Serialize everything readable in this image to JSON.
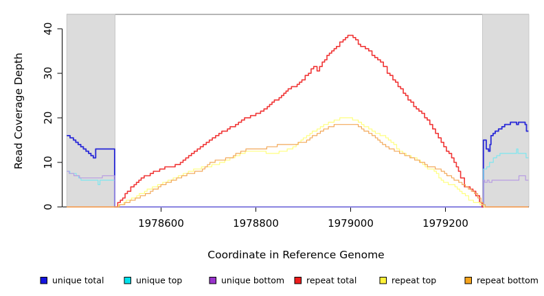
{
  "legend": {
    "items": [
      {
        "label": "unique total",
        "color": "#1414e0"
      },
      {
        "label": "unique top",
        "color": "#00e2ec"
      },
      {
        "label": "unique bottom",
        "color": "#9933cc"
      },
      {
        "label": "repeat total",
        "color": "#ee1c1c"
      },
      {
        "label": "repeat top",
        "color": "#fff23a"
      },
      {
        "label": "repeat bottom",
        "color": "#f7a41c"
      }
    ]
  },
  "chart_data": {
    "type": "line",
    "title": "",
    "xlabel": "Coordinate in Reference Genome",
    "ylabel": "Read Coverage Depth",
    "x_range": [
      1978392,
      1979376
    ],
    "y_range": [
      0,
      43.2
    ],
    "x_ticks": [
      {
        "value": 1978600,
        "label": "1978600"
      },
      {
        "value": 1978800,
        "label": "1978800"
      },
      {
        "value": 1979000,
        "label": "1979000"
      },
      {
        "value": 1979200,
        "label": "1979200"
      }
    ],
    "y_ticks": [
      {
        "value": 0,
        "label": "0"
      },
      {
        "value": 10,
        "label": "10"
      },
      {
        "value": 20,
        "label": "20"
      },
      {
        "value": 30,
        "label": "30"
      },
      {
        "value": 40,
        "label": "40"
      }
    ],
    "masked_regions": [
      [
        1978401,
        1978503
      ],
      [
        1979278,
        1979376
      ]
    ],
    "mask_fill": "#dcdcdc",
    "mask_edge": "#c2c2c2",
    "step": true,
    "legend_position": "bottom",
    "grid": false,
    "series": [
      {
        "name": "unique total",
        "color": "#2e2ed7",
        "width": 1.9,
        "points": [
          [
            1978401,
            16
          ],
          [
            1978415,
            15
          ],
          [
            1978425,
            14
          ],
          [
            1978436,
            13
          ],
          [
            1978447,
            12
          ],
          [
            1978457,
            11
          ],
          [
            1978462,
            13
          ],
          [
            1978501,
            13
          ],
          [
            1978502,
            0
          ],
          [
            1979279,
            0
          ],
          [
            1979280,
            15
          ],
          [
            1979286,
            13
          ],
          [
            1979291,
            12.5
          ],
          [
            1979294,
            14
          ],
          [
            1979296,
            16
          ],
          [
            1979305,
            17
          ],
          [
            1979319,
            18
          ],
          [
            1979343,
            19
          ],
          [
            1979350,
            18.5
          ],
          [
            1979354,
            19
          ],
          [
            1979368,
            18.5
          ],
          [
            1979371,
            17
          ],
          [
            1979375,
            17
          ]
        ]
      },
      {
        "name": "unique top",
        "color": "#7de6ef",
        "width": 1.2,
        "points": [
          [
            1978401,
            8
          ],
          [
            1978421,
            7
          ],
          [
            1978431,
            6
          ],
          [
            1978464,
            6
          ],
          [
            1978467,
            5
          ],
          [
            1978471,
            6
          ],
          [
            1978501,
            6
          ],
          [
            1978502,
            0
          ],
          [
            1979279,
            0
          ],
          [
            1979280,
            8.5
          ],
          [
            1979287,
            9
          ],
          [
            1979293,
            10
          ],
          [
            1979301,
            11
          ],
          [
            1979315,
            12
          ],
          [
            1979347,
            12
          ],
          [
            1979350,
            13
          ],
          [
            1979353,
            12
          ],
          [
            1979368,
            12
          ],
          [
            1979370,
            11
          ],
          [
            1979375,
            11
          ]
        ]
      },
      {
        "name": "unique bottom",
        "color": "#b79ce2",
        "width": 1.2,
        "points": [
          [
            1978401,
            8
          ],
          [
            1978416,
            7
          ],
          [
            1978428,
            6.5
          ],
          [
            1978474,
            6.5
          ],
          [
            1978476,
            7
          ],
          [
            1978501,
            7
          ],
          [
            1978502,
            0
          ],
          [
            1979279,
            0
          ],
          [
            1979280,
            6
          ],
          [
            1979283,
            5.5
          ],
          [
            1979288,
            6
          ],
          [
            1979292,
            5.5
          ],
          [
            1979298,
            6
          ],
          [
            1979353,
            6
          ],
          [
            1979355,
            7
          ],
          [
            1979367,
            7
          ],
          [
            1979369,
            6
          ],
          [
            1979375,
            6
          ]
        ]
      },
      {
        "name": "repeat total",
        "color": "#f03434",
        "width": 1.6,
        "points": [
          [
            1978401,
            0
          ],
          [
            1978503,
            0
          ],
          [
            1978514,
            1.5
          ],
          [
            1978529,
            3.5
          ],
          [
            1978543,
            5
          ],
          [
            1978558,
            6.5
          ],
          [
            1978577,
            7.5
          ],
          [
            1978597,
            8.5
          ],
          [
            1978619,
            9
          ],
          [
            1978635,
            9.5
          ],
          [
            1978652,
            11
          ],
          [
            1978670,
            12.5
          ],
          [
            1978689,
            14
          ],
          [
            1978708,
            15.5
          ],
          [
            1978722,
            16.5
          ],
          [
            1978740,
            17.5
          ],
          [
            1978757,
            18.5
          ],
          [
            1978776,
            20
          ],
          [
            1978795,
            20.5
          ],
          [
            1978810,
            21.5
          ],
          [
            1978824,
            22.5
          ],
          [
            1978834,
            23.5
          ],
          [
            1978849,
            24.5
          ],
          [
            1978859,
            25.5
          ],
          [
            1978868,
            26.5
          ],
          [
            1978882,
            27
          ],
          [
            1978897,
            28.5
          ],
          [
            1978911,
            30
          ],
          [
            1978922,
            31.5
          ],
          [
            1978929,
            30.5
          ],
          [
            1978940,
            32.5
          ],
          [
            1978955,
            34.5
          ],
          [
            1978970,
            36
          ],
          [
            1978984,
            37.5
          ],
          [
            1978994,
            38.5
          ],
          [
            1979005,
            38
          ],
          [
            1979016,
            36.5
          ],
          [
            1979031,
            35.5
          ],
          [
            1979045,
            34
          ],
          [
            1979057,
            33
          ],
          [
            1979069,
            31.5
          ],
          [
            1979077,
            30
          ],
          [
            1979089,
            28.5
          ],
          [
            1979100,
            27
          ],
          [
            1979111,
            25.5
          ],
          [
            1979121,
            24
          ],
          [
            1979133,
            22.5
          ],
          [
            1979144,
            21.5
          ],
          [
            1979156,
            20
          ],
          [
            1979167,
            18.5
          ],
          [
            1979179,
            16.5
          ],
          [
            1979191,
            14.5
          ],
          [
            1979202,
            12.5
          ],
          [
            1979213,
            11
          ],
          [
            1979223,
            9
          ],
          [
            1979232,
            6.5
          ],
          [
            1979240,
            4.5
          ],
          [
            1979252,
            4
          ],
          [
            1979264,
            2.5
          ],
          [
            1979272,
            1
          ],
          [
            1979277,
            0
          ],
          [
            1979375,
            0
          ]
        ]
      },
      {
        "name": "repeat top",
        "color": "#ffff7d",
        "width": 1.2,
        "points": [
          [
            1978401,
            0
          ],
          [
            1978505,
            0
          ],
          [
            1978521,
            1
          ],
          [
            1978543,
            2
          ],
          [
            1978565,
            3.5
          ],
          [
            1978587,
            4.5
          ],
          [
            1978609,
            5.5
          ],
          [
            1978631,
            6.5
          ],
          [
            1978652,
            7.5
          ],
          [
            1978674,
            8.5
          ],
          [
            1978696,
            9
          ],
          [
            1978718,
            9.5
          ],
          [
            1978740,
            10.5
          ],
          [
            1978761,
            11.5
          ],
          [
            1978783,
            12.5
          ],
          [
            1978805,
            12.5
          ],
          [
            1978827,
            12
          ],
          [
            1978842,
            12
          ],
          [
            1978856,
            12.5
          ],
          [
            1978871,
            13
          ],
          [
            1978885,
            14
          ],
          [
            1978900,
            15.5
          ],
          [
            1978914,
            16.5
          ],
          [
            1978929,
            17.5
          ],
          [
            1978943,
            18.5
          ],
          [
            1978958,
            19
          ],
          [
            1978972,
            19.5
          ],
          [
            1978982,
            20
          ],
          [
            1978994,
            20
          ],
          [
            1979009,
            19.5
          ],
          [
            1979023,
            18.5
          ],
          [
            1979038,
            17.5
          ],
          [
            1979052,
            16.5
          ],
          [
            1979062,
            16
          ],
          [
            1979074,
            15.5
          ],
          [
            1979085,
            14.5
          ],
          [
            1979103,
            12.5
          ],
          [
            1979117,
            11.5
          ],
          [
            1979133,
            11
          ],
          [
            1979147,
            10
          ],
          [
            1979162,
            8.5
          ],
          [
            1979176,
            8
          ],
          [
            1979191,
            6
          ],
          [
            1979206,
            5
          ],
          [
            1979220,
            4.5
          ],
          [
            1979235,
            3
          ],
          [
            1979249,
            1.5
          ],
          [
            1979264,
            1
          ],
          [
            1979273,
            0.5
          ],
          [
            1979281,
            0
          ],
          [
            1979375,
            0
          ]
        ]
      },
      {
        "name": "repeat bottom",
        "color": "#f2a757",
        "width": 1.2,
        "points": [
          [
            1978401,
            0
          ],
          [
            1978507,
            0
          ],
          [
            1978529,
            1
          ],
          [
            1978551,
            2
          ],
          [
            1978572,
            3
          ],
          [
            1978594,
            4.5
          ],
          [
            1978616,
            5.5
          ],
          [
            1978638,
            6.5
          ],
          [
            1978660,
            7.5
          ],
          [
            1978682,
            8
          ],
          [
            1978703,
            10
          ],
          [
            1978725,
            10.5
          ],
          [
            1978747,
            11
          ],
          [
            1978768,
            12.5
          ],
          [
            1978790,
            13
          ],
          [
            1978812,
            13
          ],
          [
            1978834,
            13.5
          ],
          [
            1978856,
            14
          ],
          [
            1978878,
            14
          ],
          [
            1978900,
            14.5
          ],
          [
            1978914,
            15.5
          ],
          [
            1978929,
            16.5
          ],
          [
            1978943,
            17.5
          ],
          [
            1978958,
            18
          ],
          [
            1978972,
            18.5
          ],
          [
            1978994,
            18.5
          ],
          [
            1979009,
            18.5
          ],
          [
            1979023,
            17.5
          ],
          [
            1979038,
            16.5
          ],
          [
            1979052,
            15.5
          ],
          [
            1979067,
            14
          ],
          [
            1979081,
            13
          ],
          [
            1979103,
            12
          ],
          [
            1979125,
            11
          ],
          [
            1979140,
            10.5
          ],
          [
            1979162,
            9
          ],
          [
            1979184,
            8.5
          ],
          [
            1979198,
            7.5
          ],
          [
            1979213,
            6.5
          ],
          [
            1979228,
            5.5
          ],
          [
            1979242,
            4.5
          ],
          [
            1979261,
            3
          ],
          [
            1979275,
            1
          ],
          [
            1979284,
            0
          ],
          [
            1979375,
            0
          ]
        ]
      }
    ]
  }
}
